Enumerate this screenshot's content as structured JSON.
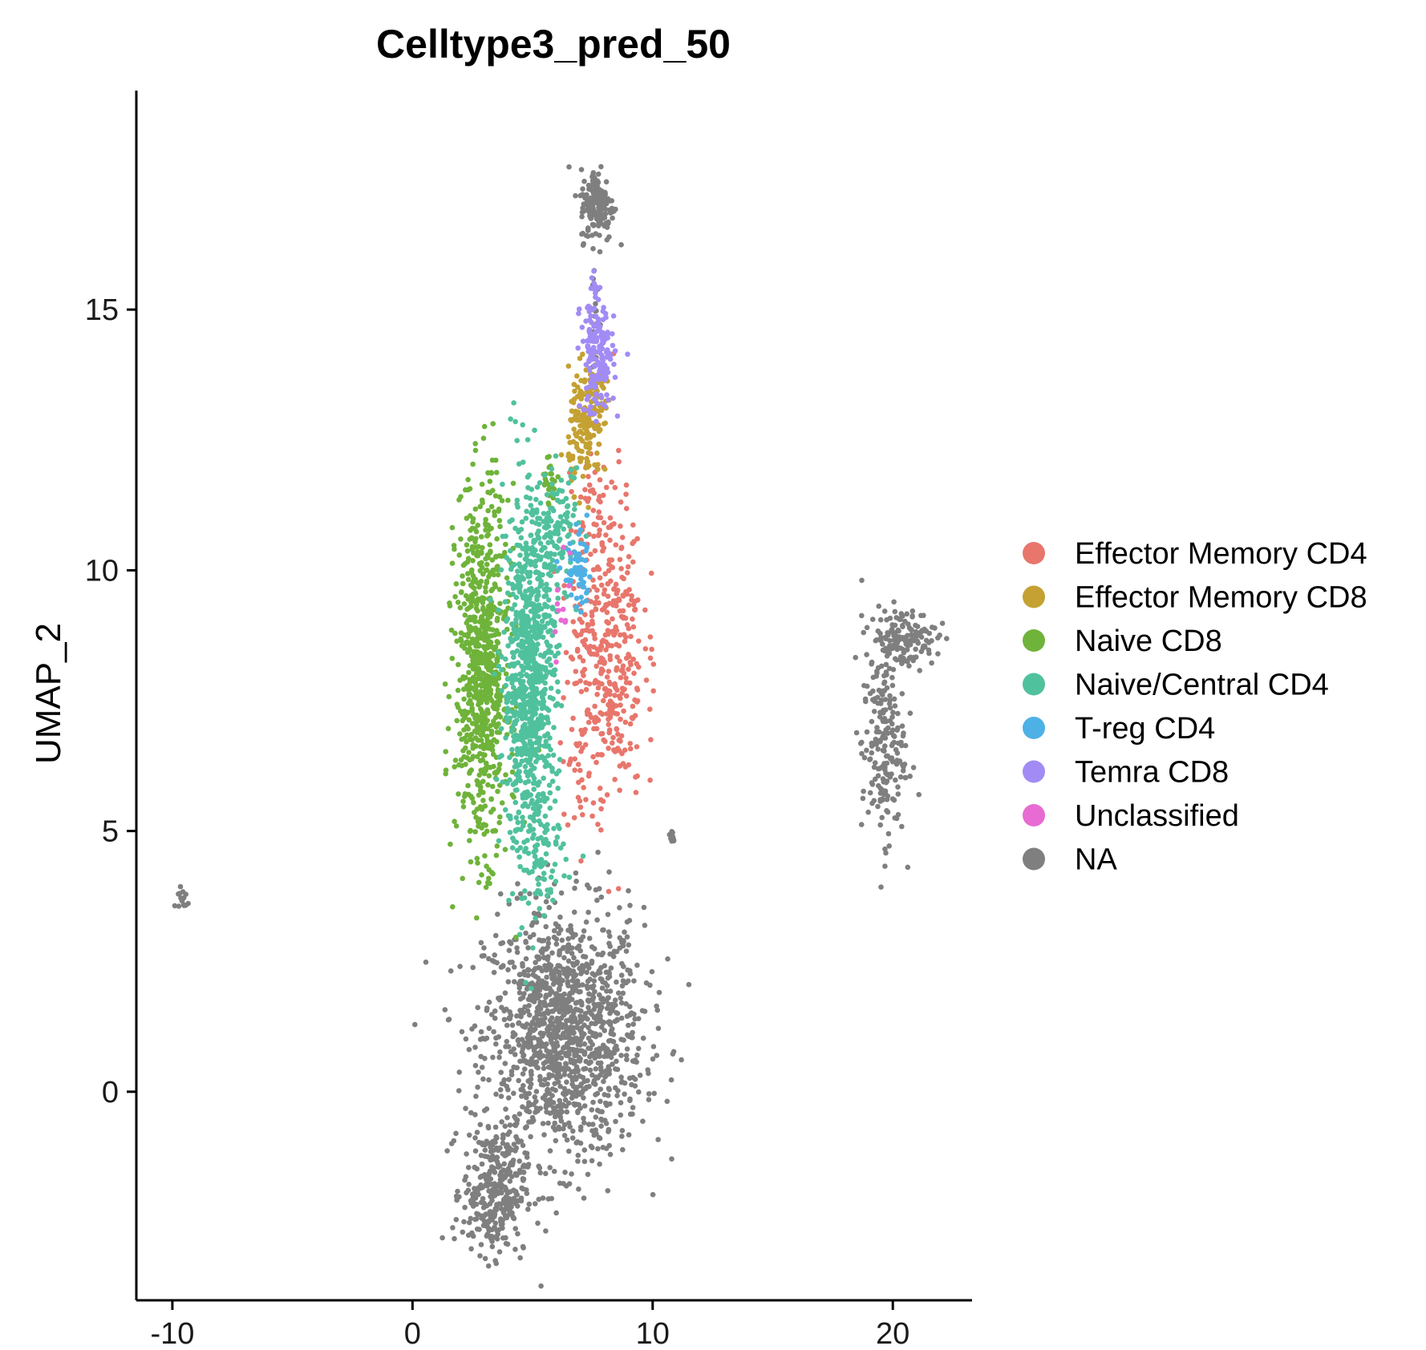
{
  "chart_data": {
    "type": "scatter",
    "title": "Celltype3_pred_50",
    "xlabel": "",
    "ylabel": "UMAP_2",
    "xlim": [
      -11.5,
      23.3
    ],
    "ylim": [
      -4,
      19.2
    ],
    "x_ticks": [
      -10,
      0,
      10,
      20
    ],
    "y_ticks": [
      0,
      5,
      10,
      15
    ],
    "grid": false,
    "legend_position": "right",
    "series": [
      {
        "name": "Effector Memory CD4",
        "color": "#E8766C",
        "clusters": [
          {
            "x": 8.1,
            "y": 8.6,
            "sx": 0.75,
            "sy": 1.55,
            "n": 420
          },
          {
            "x": 7.5,
            "y": 11.2,
            "sx": 0.35,
            "sy": 0.5,
            "n": 25
          },
          {
            "x": 6.8,
            "y": 6.3,
            "sx": 0.35,
            "sy": 0.6,
            "n": 25
          }
        ]
      },
      {
        "name": "Effector Memory CD8",
        "color": "#C4A132",
        "clusters": [
          {
            "x": 7.2,
            "y": 12.7,
            "sx": 0.35,
            "sy": 0.55,
            "n": 150
          },
          {
            "x": 7.7,
            "y": 13.4,
            "sx": 0.3,
            "sy": 0.3,
            "n": 40
          }
        ]
      },
      {
        "name": "Naive CD8",
        "color": "#6FB33A",
        "clusters": [
          {
            "x": 2.9,
            "y": 8.1,
            "sx": 0.55,
            "sy": 1.7,
            "n": 780
          },
          {
            "x": 5.7,
            "y": 11.7,
            "sx": 0.15,
            "sy": 0.25,
            "n": 25
          }
        ]
      },
      {
        "name": "Naive/Central CD4",
        "color": "#50C19D",
        "clusters": [
          {
            "x": 4.9,
            "y": 7.9,
            "sx": 0.55,
            "sy": 1.75,
            "n": 900
          },
          {
            "x": 6.0,
            "y": 10.7,
            "sx": 0.45,
            "sy": 0.6,
            "n": 120
          },
          {
            "x": 5.5,
            "y": 4.4,
            "sx": 0.45,
            "sy": 0.35,
            "n": 40
          }
        ]
      },
      {
        "name": "T-reg CD4",
        "color": "#4EB1E6",
        "clusters": [
          {
            "x": 6.9,
            "y": 9.9,
            "sx": 0.3,
            "sy": 0.35,
            "n": 60
          }
        ]
      },
      {
        "name": "Temra CD8",
        "color": "#A28BF5",
        "clusters": [
          {
            "x": 7.7,
            "y": 14.1,
            "sx": 0.35,
            "sy": 0.55,
            "n": 170
          },
          {
            "x": 7.6,
            "y": 15.3,
            "sx": 0.1,
            "sy": 0.2,
            "n": 10
          }
        ]
      },
      {
        "name": "Unclassified",
        "color": "#E76BD3",
        "clusters": [
          {
            "x": 6.5,
            "y": 9.3,
            "sx": 0.6,
            "sy": 0.8,
            "n": 12
          }
        ]
      },
      {
        "name": "NA",
        "color": "#7F7F7F",
        "clusters": [
          {
            "x": 6.3,
            "y": 1.1,
            "sx": 1.65,
            "sy": 1.2,
            "n": 1350
          },
          {
            "x": 3.4,
            "y": -1.9,
            "sx": 0.65,
            "sy": 0.6,
            "n": 320
          },
          {
            "x": 7.7,
            "y": 17.0,
            "sx": 0.35,
            "sy": 0.35,
            "n": 170
          },
          {
            "x": 7.6,
            "y": 15.2,
            "sx": 0.08,
            "sy": 0.6,
            "n": 20
          },
          {
            "x": 20.4,
            "y": 8.7,
            "sx": 0.7,
            "sy": 0.28,
            "n": 150
          },
          {
            "x": 19.6,
            "y": 6.6,
            "sx": 0.45,
            "sy": 0.9,
            "n": 200
          },
          {
            "x": -9.6,
            "y": 3.7,
            "sx": 0.15,
            "sy": 0.15,
            "n": 14
          },
          {
            "x": 10.8,
            "y": 4.9,
            "sx": 0.12,
            "sy": 0.08,
            "n": 8
          }
        ]
      }
    ]
  }
}
